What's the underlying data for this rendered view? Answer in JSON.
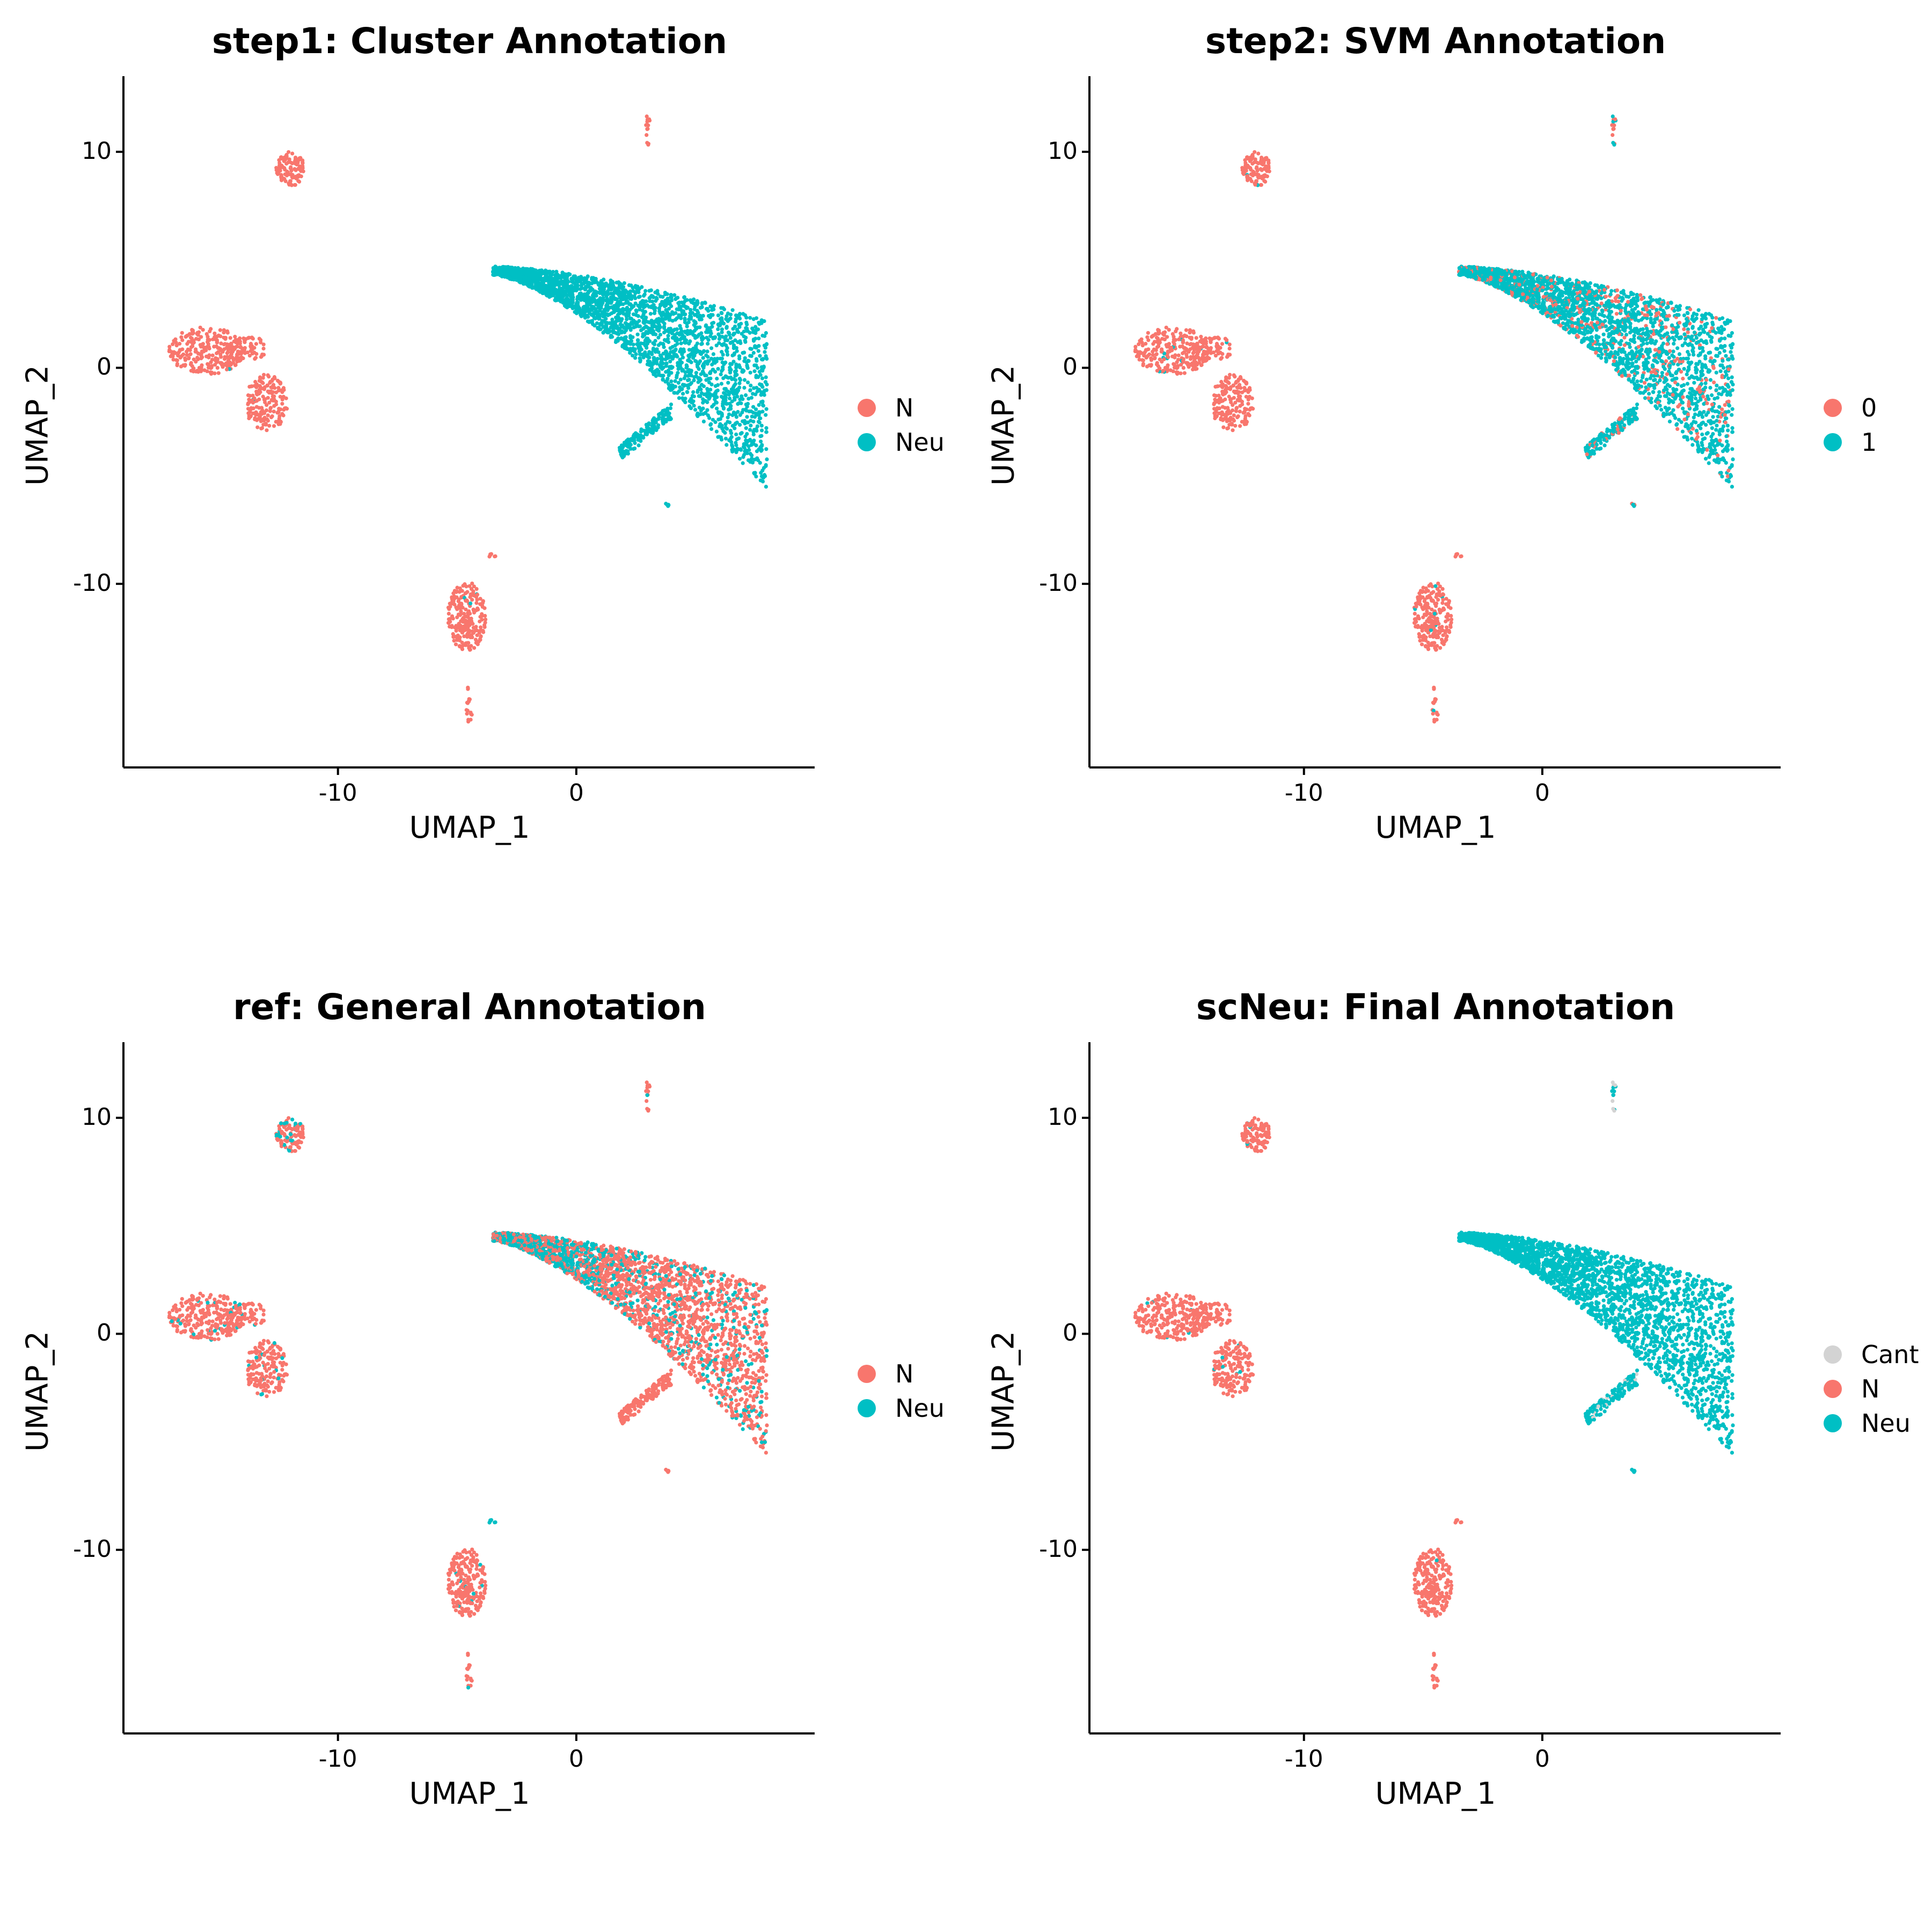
{
  "chart_data": [
    {
      "type": "scatter",
      "title": "step1: Cluster Annotation",
      "xlabel": "UMAP_1",
      "ylabel": "UMAP_2",
      "xlim": [
        -19,
        10
      ],
      "ylim": [
        -18.5,
        13.5
      ],
      "xticks": [
        {
          "value": -10,
          "label": "-10"
        },
        {
          "value": 0,
          "label": "0"
        }
      ],
      "yticks": [
        {
          "value": 10,
          "label": "10"
        },
        {
          "value": 0,
          "label": "0"
        },
        {
          "value": -10,
          "label": "-10"
        }
      ],
      "legend_position": "right",
      "series": [
        {
          "name": "N",
          "color": "#F8766D"
        },
        {
          "name": "Neu",
          "color": "#00BFC4"
        }
      ]
    },
    {
      "type": "scatter",
      "title": "step2: SVM Annotation",
      "xlabel": "UMAP_1",
      "ylabel": "UMAP_2",
      "xlim": [
        -19,
        10
      ],
      "ylim": [
        -18.5,
        13.5
      ],
      "xticks": [
        {
          "value": -10,
          "label": "-10"
        },
        {
          "value": 0,
          "label": "0"
        }
      ],
      "yticks": [
        {
          "value": 10,
          "label": "10"
        },
        {
          "value": 0,
          "label": "0"
        },
        {
          "value": -10,
          "label": "-10"
        }
      ],
      "legend_position": "right",
      "series": [
        {
          "name": "0",
          "color": "#F8766D"
        },
        {
          "name": "1",
          "color": "#00BFC4"
        }
      ]
    },
    {
      "type": "scatter",
      "title": "ref: General Annotation",
      "xlabel": "UMAP_1",
      "ylabel": "UMAP_2",
      "xlim": [
        -19,
        10
      ],
      "ylim": [
        -18.5,
        13.5
      ],
      "xticks": [
        {
          "value": -10,
          "label": "-10"
        },
        {
          "value": 0,
          "label": "0"
        }
      ],
      "yticks": [
        {
          "value": 10,
          "label": "10"
        },
        {
          "value": 0,
          "label": "0"
        },
        {
          "value": -10,
          "label": "-10"
        }
      ],
      "legend_position": "right",
      "series": [
        {
          "name": "N",
          "color": "#F8766D"
        },
        {
          "name": "Neu",
          "color": "#00BFC4"
        }
      ]
    },
    {
      "type": "scatter",
      "title": "scNeu: Final Annotation",
      "xlabel": "UMAP_1",
      "ylabel": "UMAP_2",
      "xlim": [
        -19,
        10
      ],
      "ylim": [
        -18.5,
        13.5
      ],
      "xticks": [
        {
          "value": -10,
          "label": "-10"
        },
        {
          "value": 0,
          "label": "0"
        }
      ],
      "yticks": [
        {
          "value": 10,
          "label": "10"
        },
        {
          "value": 0,
          "label": "0"
        },
        {
          "value": -10,
          "label": "-10"
        }
      ],
      "legend_position": "right",
      "series": [
        {
          "name": "Cant",
          "color": "#D3D3D3"
        },
        {
          "name": "N",
          "color": "#F8766D"
        },
        {
          "name": "Neu",
          "color": "#00BFC4"
        }
      ]
    }
  ]
}
